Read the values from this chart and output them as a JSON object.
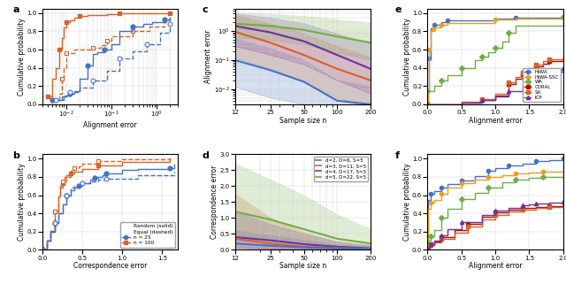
{
  "colors": {
    "blue": "#4472C4",
    "orange": "#D46327",
    "green": "#70AD47",
    "purple": "#7030A0",
    "red": "#C00000",
    "yellow_orange": "#E8A020",
    "hiwa_blue": "#4472C4",
    "hiwa_ssc_yellow": "#E8A020",
    "wa_green": "#70AD47",
    "coral_red": "#C00000",
    "sa_orange": "#D46327",
    "icp_purple": "#7030A0"
  },
  "panel_b_legend": {
    "line1": "Random (solid)",
    "line2": "Equal (dashed)",
    "line3": "n = 25",
    "line4": "n = 100"
  },
  "panel_d_legend": [
    "d=2, D=6, S=5",
    "d=3, D=11, S=5",
    "d=4, D=17, S=5",
    "d=5, D=22, S=5"
  ],
  "panel_e_legend": [
    "HiWA",
    "HiWA-SSC",
    "WA",
    "CORAL",
    "SA",
    "ICP"
  ]
}
